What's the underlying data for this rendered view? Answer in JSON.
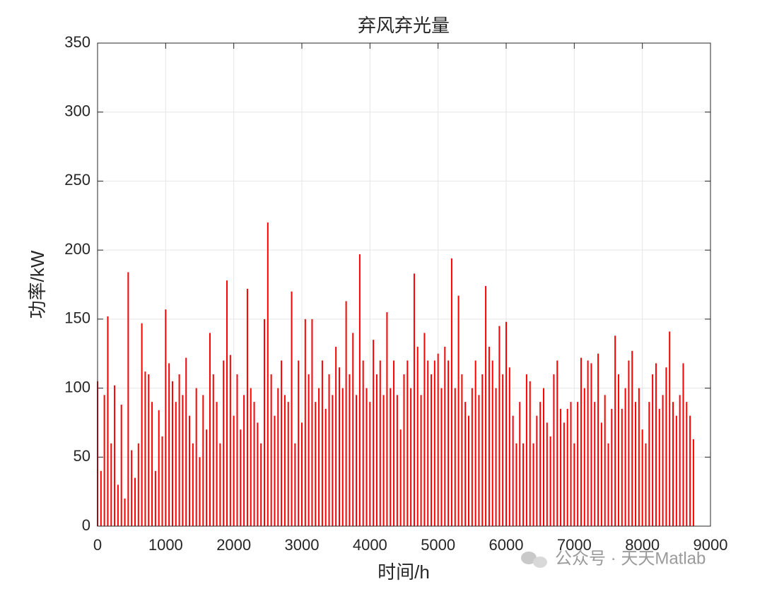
{
  "chart_data": {
    "type": "bar",
    "title": "弃风弃光量",
    "xlabel": "时间/h",
    "ylabel": "功率/kW",
    "color": "#ff0000",
    "grid": true,
    "xlim": [
      0,
      9000
    ],
    "xticks": [
      0,
      1000,
      2000,
      3000,
      4000,
      5000,
      6000,
      7000,
      8000,
      9000
    ],
    "ylim": [
      0,
      350
    ],
    "yticks": [
      0,
      50,
      100,
      150,
      200,
      250,
      300,
      350
    ],
    "x": [
      0,
      50,
      100,
      150,
      200,
      250,
      300,
      350,
      400,
      450,
      500,
      550,
      600,
      650,
      700,
      750,
      800,
      850,
      900,
      950,
      1000,
      1050,
      1100,
      1150,
      1200,
      1250,
      1300,
      1350,
      1400,
      1450,
      1500,
      1550,
      1600,
      1650,
      1700,
      1750,
      1800,
      1850,
      1900,
      1950,
      2000,
      2050,
      2100,
      2150,
      2200,
      2250,
      2300,
      2350,
      2400,
      2450,
      2500,
      2550,
      2600,
      2650,
      2700,
      2750,
      2800,
      2850,
      2900,
      2950,
      3000,
      3050,
      3100,
      3150,
      3200,
      3250,
      3300,
      3350,
      3400,
      3450,
      3500,
      3550,
      3600,
      3650,
      3700,
      3750,
      3800,
      3850,
      3900,
      3950,
      4000,
      4050,
      4100,
      4150,
      4200,
      4250,
      4300,
      4350,
      4400,
      4450,
      4500,
      4550,
      4600,
      4650,
      4700,
      4750,
      4800,
      4850,
      4900,
      4950,
      5000,
      5050,
      5100,
      5150,
      5200,
      5250,
      5300,
      5350,
      5400,
      5450,
      5500,
      5550,
      5600,
      5650,
      5700,
      5750,
      5800,
      5850,
      5900,
      5950,
      6000,
      6050,
      6100,
      6150,
      6200,
      6250,
      6300,
      6350,
      6400,
      6450,
      6500,
      6550,
      6600,
      6650,
      6700,
      6750,
      6800,
      6850,
      6900,
      6950,
      7000,
      7050,
      7100,
      7150,
      7200,
      7250,
      7300,
      7350,
      7400,
      7450,
      7500,
      7550,
      7600,
      7650,
      7700,
      7750,
      7800,
      7850,
      7900,
      7950,
      8000,
      8050,
      8100,
      8150,
      8200,
      8250,
      8300,
      8350,
      8400,
      8450,
      8500,
      8550,
      8600,
      8650,
      8700,
      8750
    ],
    "values": [
      105,
      40,
      95,
      152,
      60,
      102,
      30,
      88,
      20,
      184,
      55,
      35,
      60,
      147,
      112,
      110,
      90,
      40,
      84,
      65,
      157,
      118,
      105,
      90,
      110,
      95,
      122,
      80,
      60,
      100,
      50,
      95,
      70,
      140,
      110,
      90,
      60,
      120,
      178,
      124,
      80,
      110,
      70,
      95,
      172,
      100,
      90,
      75,
      60,
      150,
      220,
      110,
      80,
      100,
      120,
      95,
      90,
      170,
      60,
      120,
      75,
      150,
      110,
      150,
      90,
      100,
      120,
      85,
      110,
      95,
      130,
      115,
      100,
      163,
      110,
      140,
      95,
      197,
      120,
      100,
      90,
      135,
      110,
      120,
      95,
      155,
      100,
      120,
      95,
      70,
      110,
      120,
      100,
      183,
      130,
      95,
      140,
      120,
      110,
      120,
      125,
      100,
      130,
      120,
      194,
      100,
      167,
      110,
      90,
      80,
      100,
      120,
      95,
      110,
      174,
      130,
      120,
      100,
      145,
      110,
      148,
      115,
      80,
      60,
      90,
      60,
      110,
      105,
      60,
      80,
      90,
      100,
      75,
      65,
      110,
      120,
      85,
      75,
      85,
      90,
      60,
      90,
      122,
      100,
      120,
      118,
      90,
      125,
      75,
      95,
      60,
      85,
      138,
      110,
      85,
      100,
      120,
      127,
      90,
      100,
      70,
      60,
      90,
      110,
      118,
      85,
      95,
      115,
      141,
      90,
      80,
      95,
      118,
      90,
      80,
      63
    ]
  },
  "watermark": "公众号 · 天天Matlab"
}
